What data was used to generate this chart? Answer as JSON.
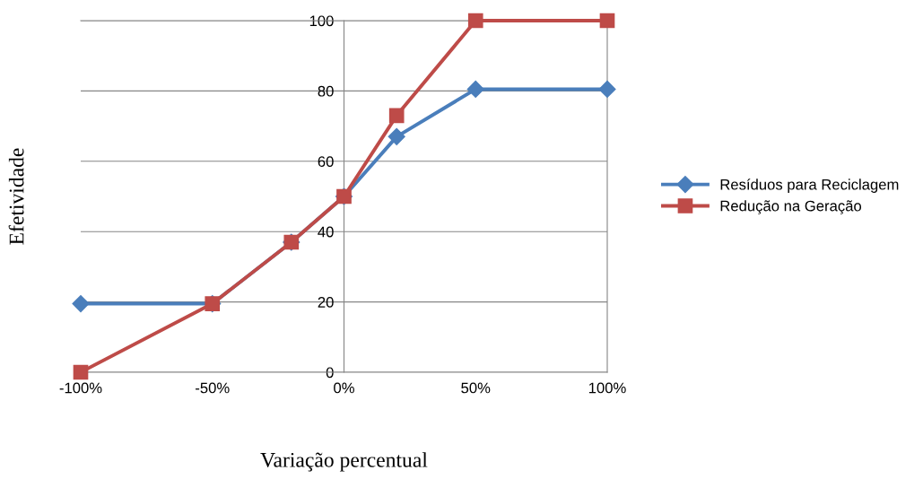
{
  "chart_data": {
    "type": "line",
    "xlabel": "Variação percentual",
    "ylabel": "Efetividade",
    "x": [
      -100,
      -50,
      -20,
      0,
      20,
      50,
      100
    ],
    "series": [
      {
        "name": "Resíduos para Reciclagem",
        "color": "#4a7ebb",
        "marker": "diamond",
        "values": [
          19.5,
          19.5,
          37,
          50,
          67,
          80.5,
          80.5
        ]
      },
      {
        "name": "Redução na Geração",
        "color": "#be4b48",
        "marker": "square",
        "values": [
          0,
          19.5,
          37,
          50,
          73,
          100,
          100
        ]
      }
    ],
    "xlim": [
      -100,
      100
    ],
    "xticks": [
      {
        "value": -100,
        "label": "-100%"
      },
      {
        "value": -50,
        "label": "-50%"
      },
      {
        "value": 0,
        "label": "0%"
      },
      {
        "value": 50,
        "label": "50%"
      },
      {
        "value": 100,
        "label": "100%"
      }
    ],
    "ylim": [
      0,
      100
    ],
    "yticks": [
      0,
      20,
      40,
      60,
      80,
      100
    ],
    "grid": "y",
    "legend": "right",
    "line_style": "solid"
  }
}
